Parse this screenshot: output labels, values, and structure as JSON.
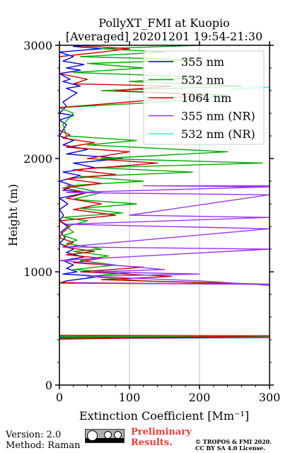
{
  "chart_data": {
    "type": "line",
    "title": "PollyXT_FMI at Kuopio",
    "subtitle": "[Averaged] 20201201 19:54-21:30",
    "xlabel": "Extinction Coefficient [Mm⁻¹]",
    "ylabel": "Height (m)",
    "xlim": [
      0,
      300
    ],
    "ylim": [
      0,
      3000
    ],
    "xticks": [
      0,
      100,
      200,
      300
    ],
    "yticks": [
      0,
      1000,
      2000,
      3000
    ],
    "grid": "vertical",
    "legend_position": "top-right",
    "series": [
      {
        "name": "355 nm",
        "color": "#0000dd",
        "points": [
          [
            0,
            410
          ],
          [
            300,
            420
          ],
          [
            0,
            425
          ],
          [
            0,
            900
          ],
          [
            10,
            920
          ],
          [
            60,
            960
          ],
          [
            5,
            980
          ],
          [
            25,
            1000
          ],
          [
            10,
            1030
          ],
          [
            20,
            1060
          ],
          [
            5,
            1100
          ],
          [
            35,
            1130
          ],
          [
            10,
            1170
          ],
          [
            20,
            1200
          ],
          [
            0,
            1250
          ],
          [
            8,
            1300
          ],
          [
            2,
            1350
          ],
          [
            12,
            1400
          ],
          [
            0,
            1450
          ],
          [
            6,
            1500
          ],
          [
            0,
            1550
          ],
          [
            12,
            1600
          ],
          [
            0,
            1650
          ],
          [
            40,
            1700
          ],
          [
            5,
            1720
          ],
          [
            20,
            1760
          ],
          [
            0,
            1800
          ],
          [
            30,
            1850
          ],
          [
            5,
            1880
          ],
          [
            50,
            1920
          ],
          [
            20,
            1960
          ],
          [
            90,
            2000
          ],
          [
            10,
            2040
          ],
          [
            40,
            2080
          ],
          [
            5,
            2120
          ],
          [
            20,
            2160
          ],
          [
            0,
            2200
          ],
          [
            10,
            2300
          ],
          [
            0,
            2340
          ],
          [
            20,
            2380
          ],
          [
            0,
            2400
          ],
          [
            10,
            2460
          ],
          [
            5,
            2500
          ],
          [
            15,
            2540
          ],
          [
            25,
            2580
          ],
          [
            10,
            2620
          ],
          [
            30,
            2640
          ],
          [
            5,
            2680
          ],
          [
            15,
            2700
          ],
          [
            0,
            2750
          ],
          [
            30,
            2780
          ],
          [
            10,
            2800
          ],
          [
            35,
            2830
          ],
          [
            5,
            2860
          ],
          [
            20,
            2900
          ],
          [
            0,
            2940
          ],
          [
            60,
            2970
          ],
          [
            20,
            2990
          ],
          [
            40,
            3000
          ]
        ]
      },
      {
        "name": "532 nm",
        "color": "#00aa00",
        "points": [
          [
            0,
            415
          ],
          [
            300,
            425
          ],
          [
            0,
            430
          ],
          [
            0,
            900
          ],
          [
            300,
            890
          ],
          [
            120,
            920
          ],
          [
            40,
            960
          ],
          [
            100,
            990
          ],
          [
            20,
            1020
          ],
          [
            80,
            1060
          ],
          [
            30,
            1100
          ],
          [
            70,
            1140
          ],
          [
            20,
            1180
          ],
          [
            60,
            1200
          ],
          [
            10,
            1250
          ],
          [
            25,
            1280
          ],
          [
            5,
            1320
          ],
          [
            20,
            1350
          ],
          [
            10,
            1400
          ],
          [
            40,
            1450
          ],
          [
            5,
            1480
          ],
          [
            90,
            1520
          ],
          [
            30,
            1560
          ],
          [
            110,
            1600
          ],
          [
            20,
            1640
          ],
          [
            60,
            1700
          ],
          [
            10,
            1760
          ],
          [
            120,
            1800
          ],
          [
            30,
            1840
          ],
          [
            190,
            1880
          ],
          [
            50,
            1920
          ],
          [
            290,
            1960
          ],
          [
            60,
            2000
          ],
          [
            240,
            2060
          ],
          [
            40,
            2120
          ],
          [
            110,
            2160
          ],
          [
            10,
            2200
          ],
          [
            5,
            2300
          ],
          [
            20,
            2400
          ],
          [
            0,
            2450
          ],
          [
            150,
            2500
          ],
          [
            240,
            2560
          ],
          [
            60,
            2600
          ],
          [
            260,
            2640
          ],
          [
            100,
            2680
          ],
          [
            200,
            2720
          ],
          [
            20,
            2760
          ],
          [
            120,
            2800
          ],
          [
            40,
            2840
          ],
          [
            200,
            2870
          ],
          [
            30,
            2900
          ],
          [
            150,
            2940
          ],
          [
            60,
            2970
          ],
          [
            200,
            3000
          ]
        ]
      },
      {
        "name": "1064 nm",
        "color": "#cc0000",
        "points": [
          [
            0,
            405
          ],
          [
            300,
            435
          ],
          [
            0,
            440
          ],
          [
            0,
            905
          ],
          [
            280,
            890
          ],
          [
            60,
            930
          ],
          [
            160,
            960
          ],
          [
            30,
            1000
          ],
          [
            120,
            1040
          ],
          [
            20,
            1080
          ],
          [
            60,
            1120
          ],
          [
            10,
            1150
          ],
          [
            50,
            1180
          ],
          [
            5,
            1220
          ],
          [
            20,
            1260
          ],
          [
            0,
            1300
          ],
          [
            5,
            1350
          ],
          [
            15,
            1400
          ],
          [
            0,
            1450
          ],
          [
            80,
            1500
          ],
          [
            20,
            1550
          ],
          [
            60,
            1600
          ],
          [
            10,
            1650
          ],
          [
            40,
            1700
          ],
          [
            5,
            1740
          ],
          [
            60,
            1780
          ],
          [
            10,
            1820
          ],
          [
            80,
            1860
          ],
          [
            20,
            1900
          ],
          [
            140,
            1960
          ],
          [
            40,
            2000
          ],
          [
            100,
            2060
          ],
          [
            10,
            2100
          ],
          [
            50,
            2140
          ],
          [
            5,
            2180
          ],
          [
            15,
            2210
          ],
          [
            0,
            2250
          ],
          [
            0,
            2450
          ],
          [
            100,
            2500
          ],
          [
            210,
            2560
          ],
          [
            80,
            2600
          ],
          [
            160,
            2640
          ],
          [
            20,
            2660
          ],
          [
            40,
            2700
          ],
          [
            0,
            2750
          ],
          [
            0,
            2900
          ],
          [
            60,
            2940
          ],
          [
            100,
            2970
          ],
          [
            20,
            3000
          ]
        ]
      },
      {
        "name": "355 nm (NR)",
        "color": "#9933ff",
        "points": [
          [
            20,
            900
          ],
          [
            300,
            890
          ],
          [
            300,
            880
          ],
          [
            200,
            920
          ],
          [
            40,
            960
          ],
          [
            200,
            980
          ],
          [
            50,
            1000
          ],
          [
            150,
            1020
          ],
          [
            0,
            1100
          ],
          [
            300,
            1200
          ],
          [
            10,
            1220
          ],
          [
            300,
            1380
          ],
          [
            10,
            1420
          ],
          [
            300,
            1480
          ],
          [
            100,
            1500
          ],
          [
            300,
            1680
          ],
          [
            10,
            1700
          ],
          [
            300,
            1750
          ],
          [
            120,
            1760
          ],
          [
            300,
            1760
          ]
        ]
      },
      {
        "name": "532 nm (NR)",
        "color": "#33eecc",
        "points": [
          [
            250,
            2620
          ],
          [
            300,
            2630
          ],
          [
            240,
            2600
          ]
        ]
      }
    ]
  },
  "footer": {
    "version": "Version: 2.0",
    "method": "Method: Raman",
    "preliminary": [
      "Preliminary",
      "Results."
    ],
    "copyright": [
      "© TROPOS & FMI 2020.",
      "CC BY SA 4.0 License."
    ]
  }
}
